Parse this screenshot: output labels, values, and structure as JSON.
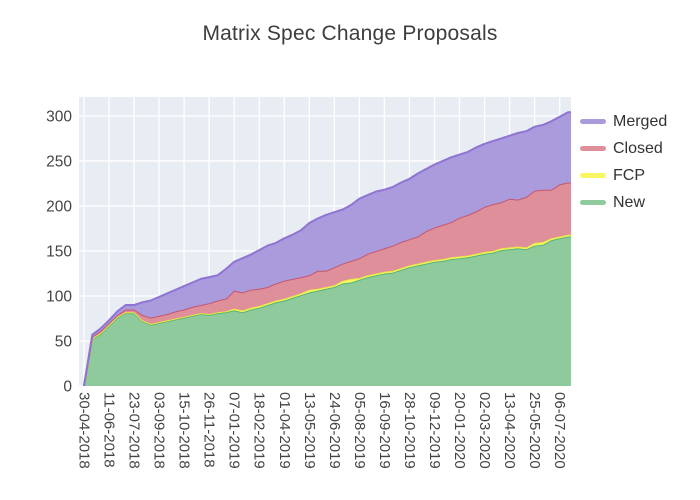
{
  "title": "Matrix Spec Change Proposals",
  "chart_data": {
    "type": "area",
    "stacked": true,
    "title": "Matrix Spec Change Proposals",
    "xlabel": "",
    "ylabel": "",
    "grid": true,
    "plot_bg": "#e8edf4",
    "grid_color": "#ffffff",
    "tick_color": "#444444",
    "y_ticks": [
      0,
      50,
      100,
      150,
      200,
      250,
      300
    ],
    "y_max": 321,
    "legend_position": "right",
    "legend_order": [
      "Merged",
      "Closed",
      "FCP",
      "New"
    ],
    "x_tick_labels": [
      "30-04-2018",
      "11-06-2018",
      "23-07-2018",
      "03-09-2018",
      "15-10-2018",
      "26-11-2018",
      "07-01-2019",
      "18-02-2019",
      "01-04-2019",
      "13-05-2019",
      "24-06-2019",
      "05-08-2019",
      "16-09-2019",
      "28-10-2019",
      "09-12-2019",
      "20-01-2020",
      "02-03-2020",
      "13-04-2020",
      "25-05-2020",
      "06-07-2020"
    ],
    "x_tick_every": 3,
    "dates": [
      "30-04-2018",
      "14-05-2018",
      "28-05-2018",
      "11-06-2018",
      "25-06-2018",
      "09-07-2018",
      "23-07-2018",
      "06-08-2018",
      "20-08-2018",
      "03-09-2018",
      "17-09-2018",
      "01-10-2018",
      "15-10-2018",
      "29-10-2018",
      "12-11-2018",
      "26-11-2018",
      "10-12-2018",
      "24-12-2018",
      "07-01-2019",
      "21-01-2019",
      "04-02-2019",
      "18-02-2019",
      "04-03-2019",
      "18-03-2019",
      "01-04-2019",
      "15-04-2019",
      "29-04-2019",
      "13-05-2019",
      "27-05-2019",
      "10-06-2019",
      "24-06-2019",
      "08-07-2019",
      "22-07-2019",
      "05-08-2019",
      "19-08-2019",
      "02-09-2019",
      "16-09-2019",
      "30-09-2019",
      "14-10-2019",
      "28-10-2019",
      "11-11-2019",
      "25-11-2019",
      "09-12-2019",
      "23-12-2019",
      "06-01-2020",
      "20-01-2020",
      "03-02-2020",
      "17-02-2020",
      "02-03-2020",
      "16-03-2020",
      "30-03-2020",
      "13-04-2020",
      "27-04-2020",
      "11-05-2020",
      "25-05-2020",
      "08-06-2020",
      "22-06-2020",
      "06-07-2020",
      "20-07-2020"
    ],
    "series": [
      {
        "name": "New",
        "fill": "#8fca9d",
        "line": "#56b476",
        "values": [
          0,
          52,
          58,
          67,
          76,
          81,
          81,
          72,
          68,
          70,
          72,
          74,
          76,
          78,
          80,
          79,
          81,
          82,
          84,
          82,
          85,
          87,
          90,
          93,
          95,
          98,
          101,
          104,
          106,
          108,
          110,
          114,
          115,
          118,
          121,
          123,
          125,
          126,
          129,
          132,
          134,
          136,
          138,
          139,
          141,
          142,
          143,
          145,
          147,
          148,
          151,
          152,
          153,
          152,
          156,
          157,
          162,
          164,
          166
        ]
      },
      {
        "name": "FCP",
        "fill": "#f8f763",
        "line": "#e8e544",
        "values": [
          0,
          1,
          1,
          1,
          1,
          1,
          1,
          1,
          1,
          1,
          1,
          1,
          1,
          1,
          1,
          1,
          1,
          1,
          2,
          2,
          2,
          2,
          2,
          2,
          2,
          2,
          2,
          3,
          2,
          2,
          2,
          3,
          4,
          2,
          2,
          2,
          2,
          2,
          2,
          2,
          2,
          2,
          2,
          2,
          2,
          2,
          2,
          2,
          2,
          2,
          2,
          2,
          2,
          2,
          3,
          3,
          2,
          2,
          2
        ]
      },
      {
        "name": "Closed",
        "fill": "#de8f9a",
        "line": "#c5566f",
        "values": [
          0,
          2,
          2,
          2,
          2,
          3,
          3,
          6,
          7,
          7,
          7,
          8,
          8,
          9,
          9,
          12,
          13,
          14,
          20,
          20,
          20,
          19,
          18,
          19,
          20,
          19,
          18,
          16,
          20,
          18,
          20,
          19,
          20,
          22,
          24,
          25,
          26,
          28,
          29,
          29,
          30,
          34,
          36,
          38,
          39,
          43,
          45,
          47,
          50,
          52,
          51,
          54,
          52,
          56,
          58,
          58,
          54,
          58,
          58
        ]
      },
      {
        "name": "Merged",
        "fill": "#aa9bdd",
        "line": "#8f74d2",
        "values": [
          0,
          2,
          3,
          3,
          4,
          5,
          5,
          14,
          19,
          21,
          23,
          24,
          26,
          27,
          29,
          29,
          28,
          33,
          32,
          38,
          39,
          43,
          46,
          45,
          47,
          49,
          52,
          58,
          58,
          62,
          61,
          60,
          62,
          66,
          65,
          66,
          65,
          65,
          66,
          67,
          70,
          69,
          70,
          71,
          72,
          70,
          70,
          71,
          70,
          70,
          71,
          70,
          74,
          73,
          71,
          72,
          76,
          75,
          78
        ]
      }
    ]
  }
}
